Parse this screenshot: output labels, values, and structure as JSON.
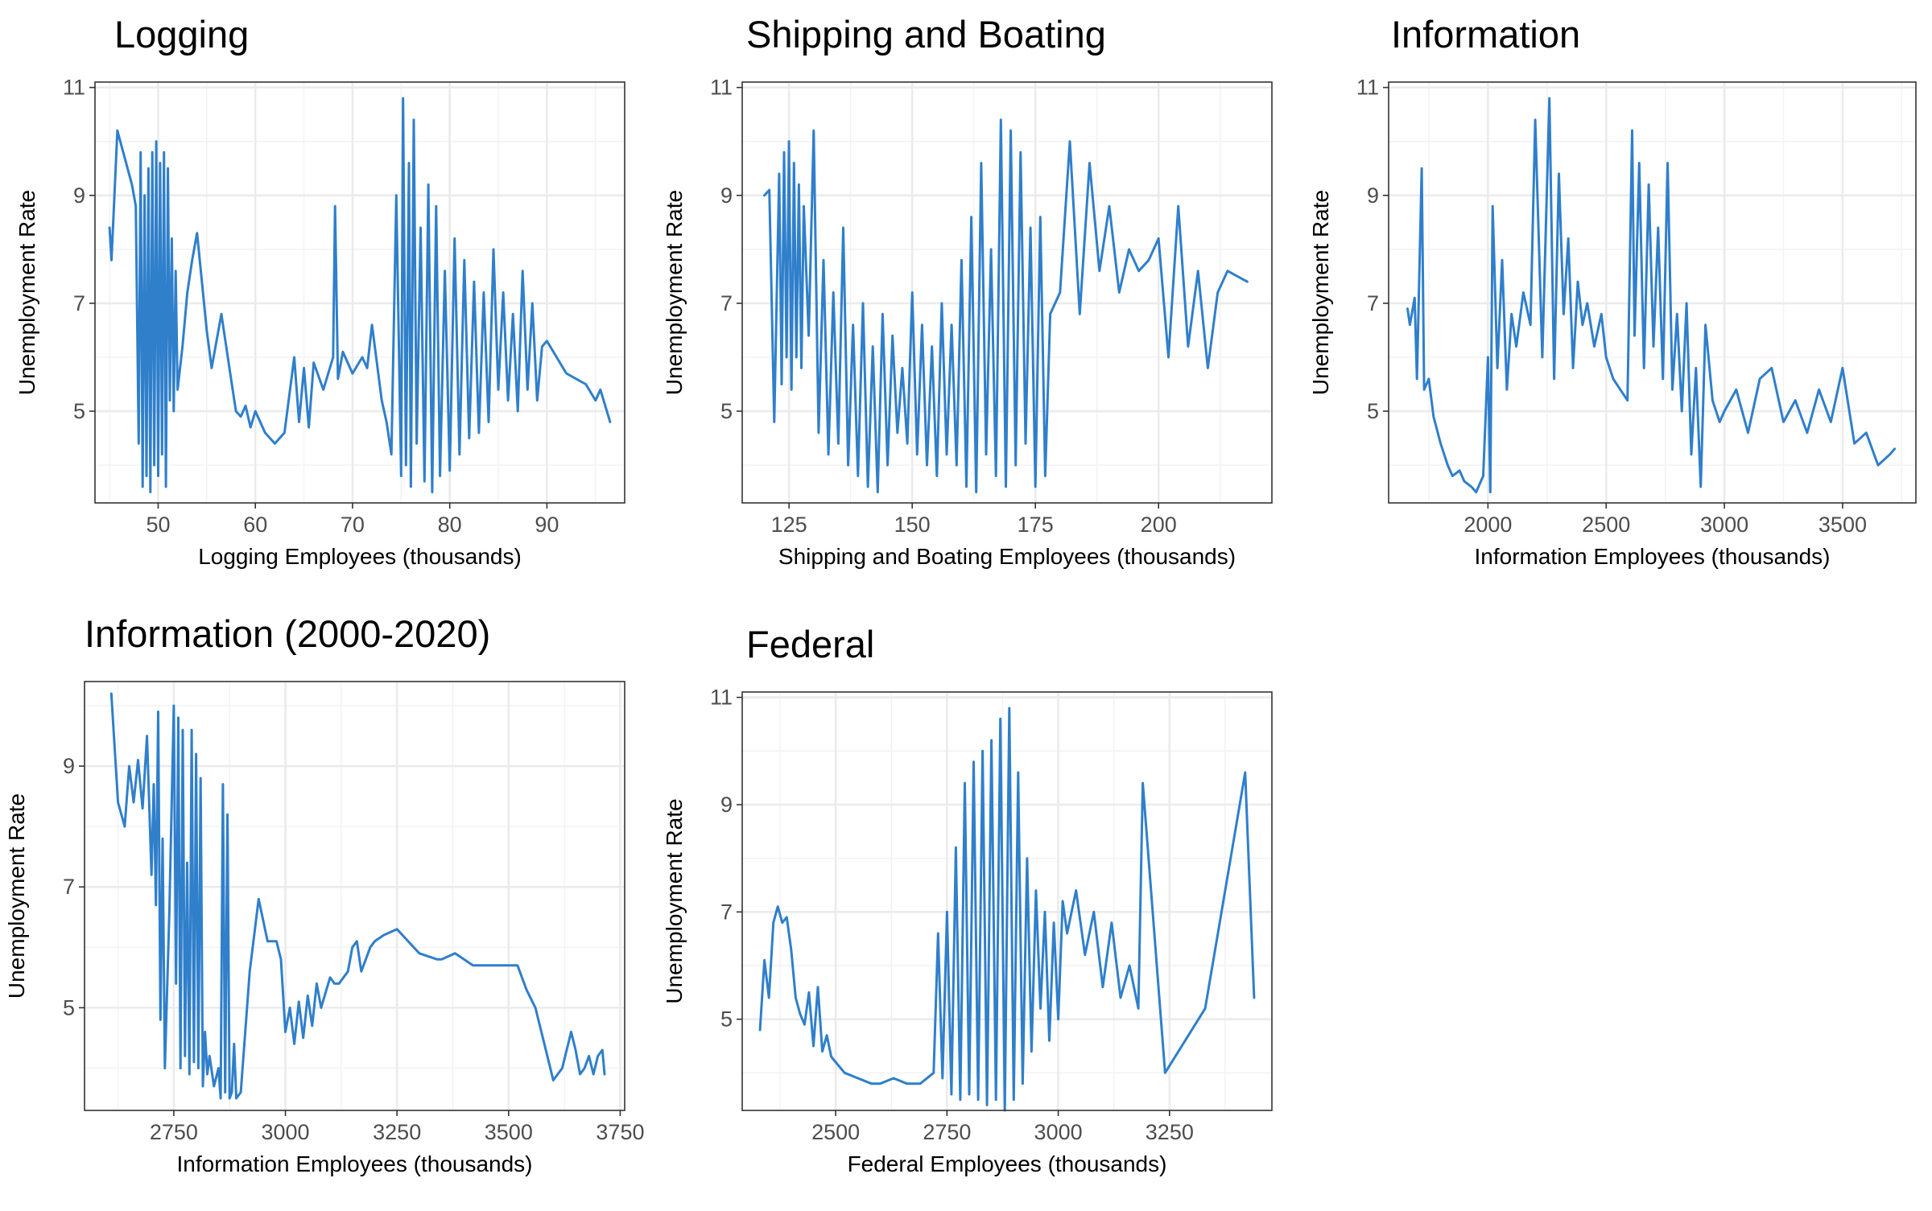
{
  "style": {
    "line_color": "#2f7fcb",
    "panel_border": "#333333",
    "grid_color": "#ebebeb",
    "text_color": "#000000",
    "tick_text_color": "#4d4d4d"
  },
  "chart_data": [
    {
      "type": "line",
      "title": "Logging",
      "xlabel": "Logging Employees (thousands)",
      "ylabel": "Unemployment Rate",
      "xlim": [
        43.5,
        98
      ],
      "ylim": [
        3.3,
        11.1
      ],
      "x_ticks": [
        50,
        60,
        70,
        80,
        90
      ],
      "y_ticks": [
        5,
        7,
        9,
        11
      ],
      "grid": true,
      "series": [
        {
          "x": [
            45.0,
            45.2,
            45.8,
            47.3,
            47.7,
            48.0,
            48.2,
            48.4,
            48.6,
            48.8,
            49.0,
            49.2,
            49.4,
            49.6,
            49.8,
            50.0,
            50.2,
            50.4,
            50.6,
            50.8,
            51.0,
            51.2,
            51.4,
            51.6,
            51.8,
            52.0,
            52.5,
            53.0,
            53.5,
            54.0,
            55.0,
            55.5,
            56.5,
            57.5,
            58.0,
            58.5,
            59.0,
            59.5,
            60.0,
            61.0,
            62.0,
            63.0,
            64.0,
            64.5,
            65.0,
            65.5,
            66.0,
            67.0,
            68.0,
            68.2,
            68.5,
            69.0,
            70.0,
            71.0,
            71.5,
            72.0,
            73.0,
            73.5,
            74.0,
            74.5,
            75.0,
            75.2,
            75.5,
            75.8,
            76.0,
            76.3,
            76.6,
            77.0,
            77.4,
            77.8,
            78.2,
            78.6,
            79.0,
            79.5,
            80.0,
            80.5,
            81.0,
            81.5,
            82.0,
            82.5,
            83.0,
            83.5,
            84.0,
            84.5,
            85.0,
            85.5,
            86.0,
            86.5,
            87.0,
            87.5,
            88.0,
            88.5,
            89.0,
            89.5,
            90.0,
            91.0,
            92.0,
            93.0,
            94.0,
            95.0,
            95.5,
            96.5
          ],
          "y": [
            8.4,
            7.8,
            10.2,
            9.2,
            8.8,
            4.4,
            9.8,
            3.6,
            9.0,
            3.8,
            9.5,
            3.5,
            9.8,
            4.0,
            10.0,
            3.8,
            9.6,
            4.2,
            9.8,
            3.6,
            9.5,
            5.2,
            8.2,
            5.0,
            7.6,
            5.4,
            6.2,
            7.2,
            7.8,
            8.3,
            6.5,
            5.8,
            6.8,
            5.6,
            5.0,
            4.9,
            5.1,
            4.7,
            5.0,
            4.6,
            4.4,
            4.6,
            6.0,
            4.8,
            5.8,
            4.7,
            5.9,
            5.4,
            6.0,
            8.8,
            5.6,
            6.1,
            5.7,
            6.0,
            5.8,
            6.6,
            5.2,
            4.8,
            4.2,
            9.0,
            3.8,
            10.8,
            4.0,
            9.6,
            3.6,
            10.4,
            4.4,
            8.4,
            3.7,
            9.2,
            3.5,
            8.8,
            3.8,
            7.6,
            3.9,
            8.2,
            4.2,
            7.8,
            4.5,
            7.4,
            4.6,
            7.2,
            4.8,
            8.0,
            5.4,
            7.2,
            5.2,
            6.8,
            5.0,
            7.6,
            5.4,
            7.0,
            5.2,
            6.2,
            6.3,
            6.0,
            5.7,
            5.6,
            5.5,
            5.2,
            5.4,
            4.8
          ]
        }
      ]
    },
    {
      "type": "line",
      "title": "Shipping and Boating",
      "xlabel": "Shipping and Boating Employees (thousands)",
      "ylabel": "Unemployment Rate",
      "xlim": [
        115.5,
        223
      ],
      "ylim": [
        3.3,
        11.1
      ],
      "x_ticks": [
        125,
        150,
        175,
        200
      ],
      "y_ticks": [
        5,
        7,
        9,
        11
      ],
      "grid": true,
      "series": [
        {
          "x": [
            120.0,
            121.0,
            122.0,
            123.0,
            123.5,
            124.0,
            124.5,
            125.0,
            125.5,
            126.0,
            126.5,
            127.0,
            127.5,
            128.0,
            129.0,
            130.0,
            131.0,
            132.0,
            133.0,
            134.0,
            135.0,
            136.0,
            137.0,
            138.0,
            139.0,
            140.0,
            141.0,
            142.0,
            143.0,
            144.0,
            145.0,
            146.0,
            147.0,
            148.0,
            149.0,
            150.0,
            151.0,
            152.0,
            153.0,
            154.0,
            155.0,
            156.0,
            157.0,
            158.0,
            159.0,
            160.0,
            161.0,
            162.0,
            163.0,
            164.0,
            165.0,
            166.0,
            167.0,
            168.0,
            169.0,
            170.0,
            171.0,
            172.0,
            173.0,
            174.0,
            175.0,
            176.0,
            177.0,
            178.0,
            180.0,
            182.0,
            184.0,
            186.0,
            188.0,
            190.0,
            192.0,
            194.0,
            196.0,
            198.0,
            200.0,
            202.0,
            204.0,
            206.0,
            208.0,
            210.0,
            212.0,
            214.0,
            216.0,
            218.0
          ],
          "y": [
            9.0,
            9.1,
            4.8,
            9.4,
            5.5,
            9.8,
            6.0,
            10.0,
            5.4,
            9.6,
            6.0,
            9.2,
            5.8,
            8.8,
            6.4,
            10.2,
            4.6,
            7.8,
            4.2,
            7.2,
            4.4,
            8.4,
            4.0,
            6.6,
            3.8,
            7.0,
            3.6,
            6.2,
            3.5,
            6.8,
            4.0,
            6.4,
            4.6,
            5.8,
            4.4,
            7.2,
            4.2,
            6.6,
            4.0,
            6.2,
            3.8,
            7.0,
            4.2,
            6.6,
            4.0,
            7.8,
            3.6,
            8.6,
            3.5,
            9.6,
            4.2,
            8.0,
            3.8,
            10.4,
            3.6,
            10.2,
            4.0,
            9.8,
            4.4,
            8.4,
            3.6,
            8.6,
            3.8,
            6.8,
            7.2,
            10.0,
            6.8,
            9.6,
            7.6,
            8.8,
            7.2,
            8.0,
            7.6,
            7.8,
            8.2,
            6.0,
            8.8,
            6.2,
            7.6,
            5.8,
            7.2,
            7.6,
            7.5,
            7.4
          ]
        }
      ]
    },
    {
      "type": "line",
      "title": "Information",
      "xlabel": "Information Employees (thousands)",
      "ylabel": "Unemployment Rate",
      "xlim": [
        1580,
        3810
      ],
      "ylim": [
        3.3,
        11.1
      ],
      "x_ticks": [
        2000,
        2500,
        3000,
        3500
      ],
      "y_ticks": [
        5,
        7,
        9,
        11
      ],
      "grid": true,
      "series": [
        {
          "x": [
            1660,
            1670,
            1690,
            1700,
            1720,
            1730,
            1750,
            1770,
            1800,
            1830,
            1850,
            1880,
            1900,
            1930,
            1950,
            1980,
            2000,
            2010,
            2020,
            2040,
            2060,
            2080,
            2100,
            2120,
            2150,
            2180,
            2200,
            2230,
            2260,
            2280,
            2300,
            2320,
            2340,
            2360,
            2380,
            2400,
            2420,
            2450,
            2480,
            2500,
            2530,
            2560,
            2590,
            2610,
            2620,
            2640,
            2660,
            2680,
            2700,
            2720,
            2740,
            2760,
            2780,
            2800,
            2820,
            2840,
            2860,
            2880,
            2900,
            2920,
            2950,
            2980,
            3000,
            3050,
            3100,
            3150,
            3200,
            3250,
            3300,
            3350,
            3400,
            3450,
            3500,
            3550,
            3600,
            3650,
            3700,
            3720
          ],
          "y": [
            6.9,
            6.6,
            7.1,
            5.6,
            9.5,
            5.4,
            5.6,
            4.9,
            4.4,
            4.0,
            3.8,
            3.9,
            3.7,
            3.6,
            3.5,
            3.8,
            6.0,
            3.5,
            8.8,
            5.8,
            7.8,
            5.4,
            6.8,
            6.2,
            7.2,
            6.6,
            10.4,
            6.0,
            10.8,
            5.6,
            9.4,
            6.8,
            8.2,
            5.8,
            7.4,
            6.6,
            7.0,
            6.2,
            6.8,
            6.0,
            5.6,
            5.4,
            5.2,
            10.2,
            6.4,
            9.6,
            5.8,
            9.2,
            6.2,
            8.4,
            5.6,
            9.6,
            5.4,
            6.8,
            5.0,
            7.0,
            4.2,
            5.8,
            3.6,
            6.6,
            5.2,
            4.8,
            5.0,
            5.4,
            4.6,
            5.6,
            5.8,
            4.8,
            5.2,
            4.6,
            5.4,
            4.8,
            5.8,
            4.4,
            4.6,
            4.0,
            4.2,
            4.3
          ]
        }
      ]
    },
    {
      "type": "line",
      "title": "Information (2000-2020)",
      "xlabel": "Information Employees (thousands)",
      "ylabel": "Unemployment Rate",
      "xlim": [
        2550,
        3760
      ],
      "ylim": [
        3.3,
        10.4
      ],
      "x_ticks": [
        2750,
        3000,
        3250,
        3500,
        3750
      ],
      "y_ticks": [
        5,
        7,
        9
      ],
      "grid": true,
      "series": [
        {
          "x": [
            2610,
            2625,
            2640,
            2650,
            2660,
            2670,
            2680,
            2690,
            2700,
            2705,
            2710,
            2715,
            2720,
            2725,
            2730,
            2740,
            2750,
            2755,
            2760,
            2765,
            2770,
            2775,
            2780,
            2785,
            2790,
            2795,
            2800,
            2805,
            2810,
            2815,
            2820,
            2825,
            2830,
            2840,
            2850,
            2855,
            2860,
            2865,
            2870,
            2875,
            2880,
            2885,
            2890,
            2900,
            2920,
            2940,
            2960,
            2980,
            2990,
            3000,
            3010,
            3020,
            3030,
            3040,
            3050,
            3060,
            3070,
            3080,
            3100,
            3110,
            3120,
            3140,
            3150,
            3160,
            3170,
            3180,
            3190,
            3200,
            3220,
            3250,
            3300,
            3340,
            3350,
            3380,
            3400,
            3420,
            3450,
            3480,
            3500,
            3520,
            3540,
            3560,
            3580,
            3600,
            3620,
            3640,
            3650,
            3660,
            3670,
            3680,
            3690,
            3700,
            3710,
            3715
          ],
          "y": [
            10.2,
            8.4,
            8.0,
            9.0,
            8.4,
            9.1,
            8.3,
            9.5,
            7.2,
            8.7,
            6.7,
            9.9,
            4.8,
            7.8,
            4.0,
            6.6,
            10.0,
            5.4,
            9.8,
            4.0,
            9.6,
            4.2,
            7.4,
            3.9,
            9.6,
            4.1,
            9.2,
            4.0,
            8.8,
            3.7,
            4.6,
            3.9,
            4.2,
            3.7,
            4.0,
            3.5,
            8.7,
            3.6,
            8.2,
            3.5,
            3.6,
            4.4,
            3.5,
            3.6,
            5.6,
            6.8,
            6.1,
            6.1,
            5.8,
            4.6,
            5.0,
            4.4,
            5.1,
            4.5,
            5.2,
            4.7,
            5.4,
            5.0,
            5.5,
            5.4,
            5.4,
            5.6,
            6.0,
            6.1,
            5.6,
            5.8,
            6.0,
            6.1,
            6.2,
            6.3,
            5.9,
            5.8,
            5.8,
            5.9,
            5.8,
            5.7,
            5.7,
            5.7,
            5.7,
            5.7,
            5.3,
            5.0,
            4.4,
            3.8,
            4.0,
            4.6,
            4.3,
            3.9,
            4.0,
            4.2,
            3.9,
            4.2,
            4.3,
            3.9
          ]
        }
      ]
    },
    {
      "type": "line",
      "title": "Federal",
      "xlabel": "Federal Employees (thousands)",
      "ylabel": "Unemployment Rate",
      "xlim": [
        2290,
        3480
      ],
      "ylim": [
        3.3,
        11.1
      ],
      "x_ticks": [
        2500,
        2750,
        3000,
        3250
      ],
      "y_ticks": [
        5,
        7,
        9,
        11
      ],
      "grid": true,
      "series": [
        {
          "x": [
            2330,
            2340,
            2350,
            2360,
            2370,
            2380,
            2390,
            2400,
            2410,
            2420,
            2430,
            2440,
            2450,
            2460,
            2470,
            2480,
            2490,
            2500,
            2520,
            2550,
            2580,
            2600,
            2630,
            2660,
            2690,
            2720,
            2730,
            2740,
            2750,
            2760,
            2770,
            2780,
            2790,
            2800,
            2810,
            2820,
            2830,
            2840,
            2850,
            2860,
            2870,
            2880,
            2890,
            2900,
            2910,
            2920,
            2930,
            2940,
            2950,
            2960,
            2970,
            2980,
            2990,
            3000,
            3010,
            3020,
            3040,
            3060,
            3080,
            3100,
            3120,
            3140,
            3160,
            3180,
            3190,
            3240,
            3330,
            3420,
            3440
          ],
          "y": [
            4.8,
            6.1,
            5.4,
            6.8,
            7.1,
            6.8,
            6.9,
            6.3,
            5.4,
            5.1,
            4.9,
            5.5,
            4.5,
            5.6,
            4.4,
            4.7,
            4.3,
            4.2,
            4.0,
            3.9,
            3.8,
            3.8,
            3.9,
            3.8,
            3.8,
            4.0,
            6.6,
            3.9,
            7.0,
            3.6,
            8.2,
            3.5,
            9.4,
            3.6,
            9.8,
            3.5,
            10.0,
            3.4,
            10.2,
            3.5,
            10.6,
            3.3,
            10.8,
            3.5,
            9.6,
            3.8,
            8.0,
            4.4,
            7.4,
            5.2,
            7.0,
            4.6,
            6.8,
            5.0,
            7.2,
            6.6,
            7.4,
            6.2,
            7.0,
            5.6,
            6.8,
            5.4,
            6.0,
            5.2,
            9.4,
            4.0,
            5.2,
            9.6,
            5.4
          ]
        }
      ]
    }
  ]
}
